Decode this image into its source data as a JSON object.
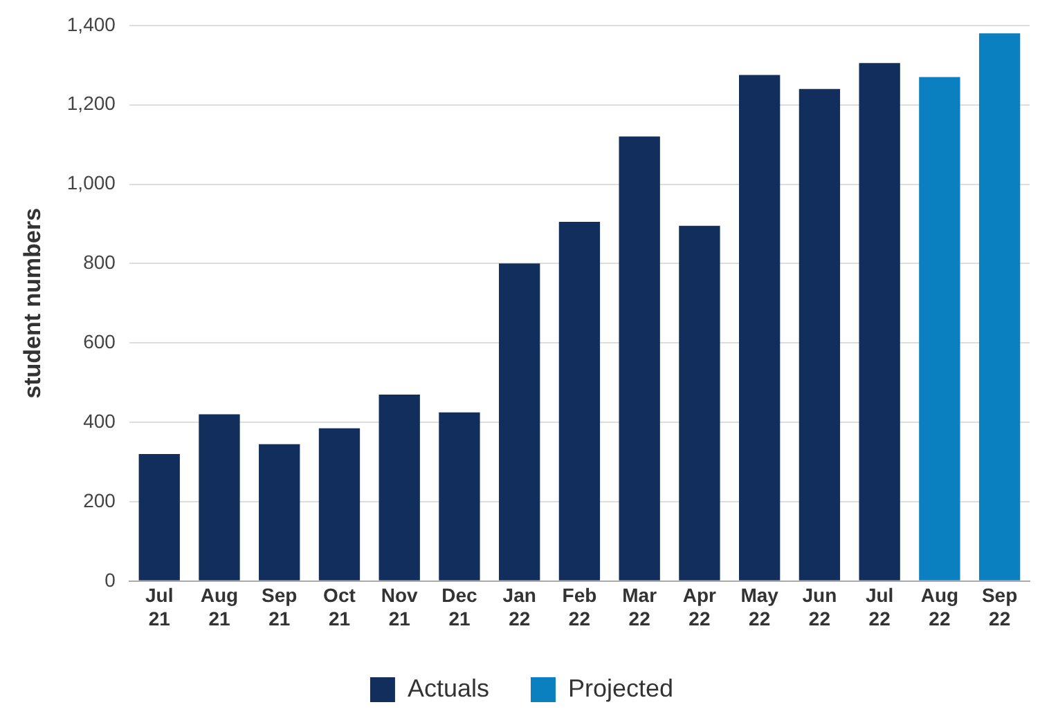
{
  "chart_data": {
    "type": "bar",
    "ylabel": "student numbers",
    "categories": [
      "Jul 21",
      "Aug 21",
      "Sep 21",
      "Oct 21",
      "Nov 21",
      "Dec 21",
      "Jan 22",
      "Feb 22",
      "Mar 22",
      "Apr 22",
      "May 22",
      "Jun 22",
      "Jul 22",
      "Aug 22",
      "Sep 22"
    ],
    "series": [
      {
        "name": "Actuals",
        "color": "#112e5c",
        "values": [
          320,
          420,
          345,
          385,
          470,
          425,
          800,
          905,
          1120,
          895,
          1275,
          1240,
          1305,
          null,
          null
        ]
      },
      {
        "name": "Projected",
        "color": "#0b80c0",
        "values": [
          null,
          null,
          null,
          null,
          null,
          null,
          null,
          null,
          null,
          null,
          null,
          null,
          null,
          1270,
          1380
        ]
      }
    ],
    "ylim": [
      0,
      1400
    ],
    "yticks": [
      0,
      200,
      400,
      600,
      800,
      {
        "value": 1000,
        "label": "1,000"
      },
      {
        "value": 1200,
        "label": "1,200"
      },
      {
        "value": 1400,
        "label": "1,400"
      }
    ],
    "grid": "y",
    "legend": "bottom"
  }
}
